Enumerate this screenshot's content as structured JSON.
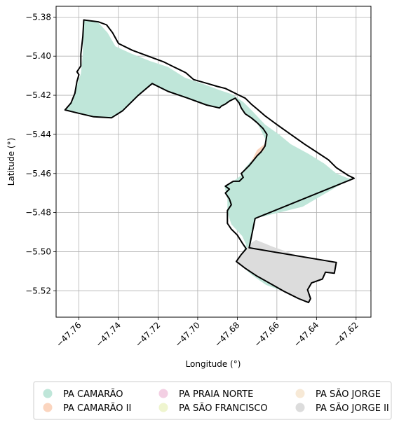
{
  "chart_data": {
    "type": "map",
    "xlabel": "Longitude (°)",
    "ylabel": "Latitude (°)",
    "xlim": [
      -47.7715,
      -47.6125
    ],
    "ylim": [
      -5.5335,
      -5.3745
    ],
    "grid": true,
    "legend_placement": "bottom",
    "x_ticks": [
      {
        "value": -47.76,
        "label": "−47.76"
      },
      {
        "value": -47.74,
        "label": "−47.74"
      },
      {
        "value": -47.72,
        "label": "−47.72"
      },
      {
        "value": -47.7,
        "label": "−47.70"
      },
      {
        "value": -47.68,
        "label": "−47.68"
      },
      {
        "value": -47.66,
        "label": "−47.66"
      },
      {
        "value": -47.64,
        "label": "−47.64"
      },
      {
        "value": -47.62,
        "label": "−47.62"
      }
    ],
    "y_ticks": [
      {
        "value": -5.38,
        "label": "−5.38"
      },
      {
        "value": -5.4,
        "label": "−5.40"
      },
      {
        "value": -5.42,
        "label": "−5.42"
      },
      {
        "value": -5.44,
        "label": "−5.44"
      },
      {
        "value": -5.46,
        "label": "−5.46"
      },
      {
        "value": -5.48,
        "label": "−5.48"
      },
      {
        "value": -5.5,
        "label": "−5.50"
      },
      {
        "value": -5.52,
        "label": "−5.52"
      }
    ],
    "legend": [
      {
        "label": "PA CAMARÃO",
        "color": "#bfe6d9"
      },
      {
        "label": "PA CAMARÃO II",
        "color": "#fbd5bf"
      },
      {
        "label": "PA PRAIA NORTE",
        "color": "#f3cfe3"
      },
      {
        "label": "PA SÃO FRANCISCO",
        "color": "#eff5cf"
      },
      {
        "label": "PA SÃO JORGE",
        "color": "#f7e9d6"
      },
      {
        "label": "PA SÃO JORGE II",
        "color": "#dcdcdc"
      }
    ],
    "regions": [
      {
        "name": "PA CAMARÃO",
        "color": "#bfe6d9",
        "boundary": [
          [
            -47.7575,
            -5.3815
          ],
          [
            -47.7575,
            -5.3815
          ],
          [
            -47.75,
            -5.383
          ],
          [
            -47.7455,
            -5.388
          ],
          [
            -47.7415,
            -5.395
          ],
          [
            -47.734,
            -5.3985
          ],
          [
            -47.724,
            -5.4025
          ],
          [
            -47.715,
            -5.4055
          ],
          [
            -47.7065,
            -5.411
          ],
          [
            -47.6965,
            -5.4145
          ],
          [
            -47.6885,
            -5.4175
          ],
          [
            -47.6825,
            -5.4195
          ],
          [
            -47.677,
            -5.4235
          ],
          [
            -47.6725,
            -5.428
          ],
          [
            -47.666,
            -5.435
          ],
          [
            -47.659,
            -5.44
          ],
          [
            -47.653,
            -5.445
          ],
          [
            -47.644,
            -5.45
          ],
          [
            -47.636,
            -5.455
          ],
          [
            -47.63,
            -5.46
          ],
          [
            -47.624,
            -5.4625
          ],
          [
            -47.621,
            -5.4625
          ],
          [
            -47.625,
            -5.464
          ],
          [
            -47.647,
            -5.477
          ],
          [
            -47.671,
            -5.483
          ],
          [
            -47.6735,
            -5.4985
          ],
          [
            -47.6625,
            -5.502
          ],
          [
            -47.649,
            -5.507
          ],
          [
            -47.639,
            -5.511
          ],
          [
            -47.6455,
            -5.5185
          ],
          [
            -47.648,
            -5.5235
          ],
          [
            -47.656,
            -5.5205
          ],
          [
            -47.6655,
            -5.517
          ],
          [
            -47.6725,
            -5.512
          ],
          [
            -47.6805,
            -5.505
          ],
          [
            -47.6775,
            -5.501
          ],
          [
            -47.6755,
            -5.4965
          ],
          [
            -47.6775,
            -5.492
          ],
          [
            -47.683,
            -5.486
          ],
          [
            -47.685,
            -5.48
          ],
          [
            -47.685,
            -5.473
          ],
          [
            -47.6865,
            -5.4665
          ],
          [
            -47.682,
            -5.464
          ],
          [
            -47.678,
            -5.461
          ],
          [
            -47.676,
            -5.457
          ],
          [
            -47.6725,
            -5.453
          ],
          [
            -47.667,
            -5.448
          ],
          [
            -47.665,
            -5.444
          ],
          [
            -47.667,
            -5.44
          ],
          [
            -47.67,
            -5.434
          ],
          [
            -47.676,
            -5.4295
          ],
          [
            -47.679,
            -5.4245
          ],
          [
            -47.681,
            -5.4215
          ],
          [
            -47.686,
            -5.4245
          ],
          [
            -47.6895,
            -5.4265
          ],
          [
            -47.6955,
            -5.425
          ],
          [
            -47.705,
            -5.4215
          ],
          [
            -47.715,
            -5.418
          ],
          [
            -47.723,
            -5.414
          ],
          [
            -47.73,
            -5.42
          ],
          [
            -47.738,
            -5.428
          ],
          [
            -47.7435,
            -5.4315
          ],
          [
            -47.7525,
            -5.431
          ],
          [
            -47.761,
            -5.429
          ],
          [
            -47.767,
            -5.4275
          ],
          [
            -47.763,
            -5.423
          ],
          [
            -47.761,
            -5.415
          ],
          [
            -47.759,
            -5.409
          ],
          [
            -47.758,
            -5.399
          ],
          [
            -47.7575,
            -5.3815
          ]
        ]
      },
      {
        "name": "PA CAMARÃO II",
        "color": "#fbd5bf",
        "boundary": [
          [
            -47.67,
            -5.448
          ],
          [
            -47.665,
            -5.444
          ],
          [
            -47.6665,
            -5.448
          ],
          [
            -47.672,
            -5.4535
          ],
          [
            -47.676,
            -5.459
          ],
          [
            -47.674,
            -5.456
          ],
          [
            -47.67,
            -5.448
          ]
        ]
      },
      {
        "name": "PA SÃO JORGE II",
        "color": "#dcdcdc",
        "boundary": [
          [
            -47.6805,
            -5.505
          ],
          [
            -47.678,
            -5.5015
          ],
          [
            -47.6755,
            -5.4985
          ],
          [
            -47.673,
            -5.4955
          ],
          [
            -47.6705,
            -5.494
          ],
          [
            -47.662,
            -5.4975
          ],
          [
            -47.648,
            -5.5025
          ],
          [
            -47.63,
            -5.5055
          ],
          [
            -47.631,
            -5.511
          ],
          [
            -47.6355,
            -5.5105
          ],
          [
            -47.637,
            -5.514
          ],
          [
            -47.6425,
            -5.516
          ],
          [
            -47.6445,
            -5.5195
          ],
          [
            -47.643,
            -5.524
          ],
          [
            -47.644,
            -5.526
          ],
          [
            -47.649,
            -5.524
          ],
          [
            -47.656,
            -5.5205
          ],
          [
            -47.663,
            -5.5165
          ],
          [
            -47.67,
            -5.5125
          ],
          [
            -47.676,
            -5.5085
          ],
          [
            -47.6805,
            -5.505
          ]
        ]
      }
    ],
    "outlines": [
      [
        [
          -47.7575,
          -5.3815
        ],
        [
          -47.75,
          -5.3825
        ],
        [
          -47.746,
          -5.384
        ],
        [
          -47.743,
          -5.388
        ],
        [
          -47.74,
          -5.3935
        ],
        [
          -47.733,
          -5.397
        ],
        [
          -47.725,
          -5.4
        ],
        [
          -47.717,
          -5.403
        ],
        [
          -47.712,
          -5.4055
        ],
        [
          -47.706,
          -5.4085
        ],
        [
          -47.702,
          -5.412
        ],
        [
          -47.695,
          -5.414
        ],
        [
          -47.69,
          -5.4155
        ],
        [
          -47.686,
          -5.4165
        ],
        [
          -47.682,
          -5.4185
        ],
        [
          -47.679,
          -5.42
        ],
        [
          -47.676,
          -5.4215
        ],
        [
          -47.673,
          -5.4245
        ],
        [
          -47.67,
          -5.427
        ],
        [
          -47.666,
          -5.4305
        ],
        [
          -47.66,
          -5.435
        ],
        [
          -47.653,
          -5.44
        ],
        [
          -47.646,
          -5.445
        ],
        [
          -47.64,
          -5.449
        ],
        [
          -47.634,
          -5.453
        ],
        [
          -47.63,
          -5.457
        ],
        [
          -47.627,
          -5.459
        ],
        [
          -47.624,
          -5.461
        ],
        [
          -47.621,
          -5.4625
        ],
        [
          -47.671,
          -5.483
        ],
        [
          -47.674,
          -5.498
        ],
        [
          -47.63,
          -5.5055
        ]
      ],
      [
        [
          -47.63,
          -5.5055
        ],
        [
          -47.631,
          -5.511
        ],
        [
          -47.6355,
          -5.5105
        ],
        [
          -47.637,
          -5.514
        ],
        [
          -47.6425,
          -5.516
        ],
        [
          -47.6445,
          -5.5195
        ],
        [
          -47.643,
          -5.524
        ],
        [
          -47.644,
          -5.526
        ],
        [
          -47.649,
          -5.524
        ],
        [
          -47.656,
          -5.5205
        ],
        [
          -47.663,
          -5.5165
        ],
        [
          -47.67,
          -5.5125
        ],
        [
          -47.676,
          -5.5085
        ],
        [
          -47.6805,
          -5.505
        ],
        [
          -47.678,
          -5.5015
        ],
        [
          -47.6755,
          -5.4985
        ],
        [
          -47.6775,
          -5.4955
        ],
        [
          -47.68,
          -5.4915
        ],
        [
          -47.683,
          -5.4885
        ],
        [
          -47.685,
          -5.4855
        ],
        [
          -47.685,
          -5.482
        ],
        [
          -47.685,
          -5.479
        ],
        [
          -47.683,
          -5.476
        ],
        [
          -47.684,
          -5.473
        ],
        [
          -47.686,
          -5.47
        ],
        [
          -47.684,
          -5.468
        ],
        [
          -47.686,
          -5.4665
        ],
        [
          -47.682,
          -5.464
        ],
        [
          -47.679,
          -5.464
        ],
        [
          -47.677,
          -5.462
        ],
        [
          -47.678,
          -5.46
        ],
        [
          -47.676,
          -5.458
        ],
        [
          -47.674,
          -5.456
        ],
        [
          -47.672,
          -5.4535
        ],
        [
          -47.67,
          -5.451
        ],
        [
          -47.668,
          -5.449
        ],
        [
          -47.666,
          -5.446
        ],
        [
          -47.6655,
          -5.443
        ],
        [
          -47.665,
          -5.44
        ],
        [
          -47.667,
          -5.437
        ],
        [
          -47.67,
          -5.434
        ],
        [
          -47.673,
          -5.4315
        ],
        [
          -47.676,
          -5.4295
        ],
        [
          -47.678,
          -5.4265
        ],
        [
          -47.679,
          -5.424
        ],
        [
          -47.681,
          -5.4215
        ],
        [
          -47.684,
          -5.423
        ],
        [
          -47.686,
          -5.4245
        ],
        [
          -47.688,
          -5.4255
        ],
        [
          -47.689,
          -5.4265
        ],
        [
          -47.6955,
          -5.425
        ]
      ],
      [
        [
          -47.6955,
          -5.425
        ],
        [
          -47.705,
          -5.4215
        ],
        [
          -47.715,
          -5.418
        ],
        [
          -47.723,
          -5.414
        ],
        [
          -47.73,
          -5.42
        ],
        [
          -47.738,
          -5.428
        ],
        [
          -47.7435,
          -5.4315
        ],
        [
          -47.7525,
          -5.431
        ],
        [
          -47.761,
          -5.429
        ],
        [
          -47.767,
          -5.4275
        ],
        [
          -47.764,
          -5.424
        ],
        [
          -47.762,
          -5.419
        ],
        [
          -47.761,
          -5.413
        ],
        [
          -47.76,
          -5.4095
        ],
        [
          -47.761,
          -5.408
        ],
        [
          -47.759,
          -5.405
        ],
        [
          -47.759,
          -5.399
        ],
        [
          -47.758,
          -5.39
        ],
        [
          -47.7575,
          -5.3815
        ]
      ]
    ]
  }
}
